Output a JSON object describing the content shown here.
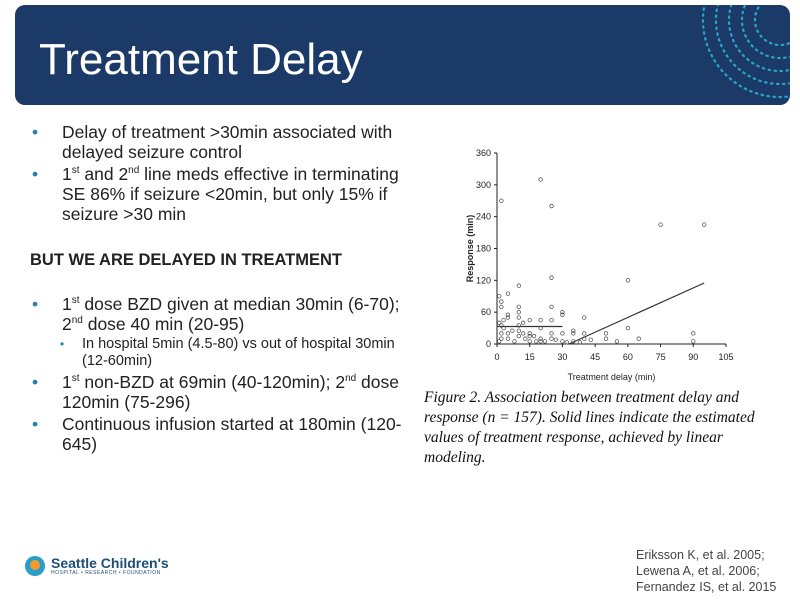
{
  "header": {
    "title": "Treatment Delay"
  },
  "bullets": [
    {
      "text": "Delay of treatment >30min associated with delayed seizure control"
    },
    {
      "parts": [
        "1",
        "st",
        " and 2",
        "nd",
        " line meds effective in terminating SE 86% if seizure <20min, but only 15% if seizure >30 min"
      ]
    }
  ],
  "emphasis": "BUT WE ARE DELAYED IN TREATMENT",
  "bullets2": [
    {
      "parts": [
        "1",
        "st",
        " dose BZD given at median 30min (6-70); 2",
        "nd",
        " dose 40 min (20-95)"
      ],
      "sub": "In hospital 5min (4.5-80) vs out of hospital 30min (12-60min)"
    },
    {
      "parts": [
        "1",
        "st",
        " non-BZD at 69min (40-120min); 2",
        "nd",
        " dose 120min (75-296)"
      ]
    },
    {
      "text": "Continuous infusion started at 180min (120-645)"
    }
  ],
  "figure_caption": "Figure 2. Association between treatment delay and response (n = 157). Solid lines indicate the estimated values of treatment response, achieved by linear modeling.",
  "references": [
    "Eriksson K, et al. 2005;",
    "Lewena A, et al. 2006;",
    "Fernandez IS, et al. 2015"
  ],
  "logo": {
    "name": "Seattle Children's",
    "tagline": "HOSPITAL • RESEARCH • FOUNDATION"
  },
  "colors": {
    "header": "#1b3a68",
    "bullet": "#2a7fb8"
  },
  "chart_data": {
    "type": "scatter",
    "xlabel": "Treatment delay (min)",
    "ylabel": "Response (min)",
    "xlim": [
      0,
      105
    ],
    "ylim": [
      0,
      360
    ],
    "xticks": [
      0,
      15,
      30,
      45,
      60,
      75,
      90,
      105
    ],
    "yticks": [
      0,
      60,
      120,
      180,
      240,
      300,
      360
    ],
    "points": [
      [
        2,
        270
      ],
      [
        20,
        310
      ],
      [
        25,
        260
      ],
      [
        75,
        225
      ],
      [
        95,
        225
      ],
      [
        25,
        125
      ],
      [
        60,
        120
      ],
      [
        10,
        110
      ],
      [
        5,
        95
      ],
      [
        1,
        90
      ],
      [
        2,
        80
      ],
      [
        2,
        70
      ],
      [
        10,
        70
      ],
      [
        25,
        70
      ],
      [
        30,
        60
      ],
      [
        30,
        55
      ],
      [
        5,
        55
      ],
      [
        5,
        50
      ],
      [
        10,
        60
      ],
      [
        10,
        50
      ],
      [
        40,
        50
      ],
      [
        20,
        45
      ],
      [
        25,
        45
      ],
      [
        1,
        40
      ],
      [
        3,
        45
      ],
      [
        10,
        35
      ],
      [
        12,
        40
      ],
      [
        15,
        45
      ],
      [
        20,
        30
      ],
      [
        25,
        20
      ],
      [
        35,
        25
      ],
      [
        35,
        20
      ],
      [
        40,
        20
      ],
      [
        50,
        20
      ],
      [
        60,
        30
      ],
      [
        65,
        10
      ],
      [
        90,
        20
      ],
      [
        90,
        5
      ],
      [
        55,
        5
      ],
      [
        50,
        10
      ],
      [
        43,
        8
      ],
      [
        2,
        20
      ],
      [
        2,
        10
      ],
      [
        5,
        20
      ],
      [
        5,
        10
      ],
      [
        8,
        5
      ],
      [
        10,
        15
      ],
      [
        13,
        10
      ],
      [
        15,
        5
      ],
      [
        15,
        15
      ],
      [
        18,
        5
      ],
      [
        20,
        10
      ],
      [
        22,
        5
      ],
      [
        25,
        10
      ],
      [
        27,
        8
      ],
      [
        30,
        5
      ],
      [
        32,
        3
      ],
      [
        35,
        5
      ],
      [
        38,
        3
      ],
      [
        40,
        10
      ],
      [
        3,
        30
      ],
      [
        1,
        5
      ],
      [
        2,
        35
      ],
      [
        7,
        25
      ],
      [
        10,
        25
      ],
      [
        12,
        20
      ],
      [
        15,
        20
      ],
      [
        20,
        5
      ],
      [
        30,
        20
      ],
      [
        17,
        15
      ]
    ],
    "fit_lines": [
      [
        [
          0,
          33
        ],
        [
          30,
          33
        ]
      ],
      [
        [
          33,
          0
        ],
        [
          95,
          115
        ]
      ]
    ]
  }
}
